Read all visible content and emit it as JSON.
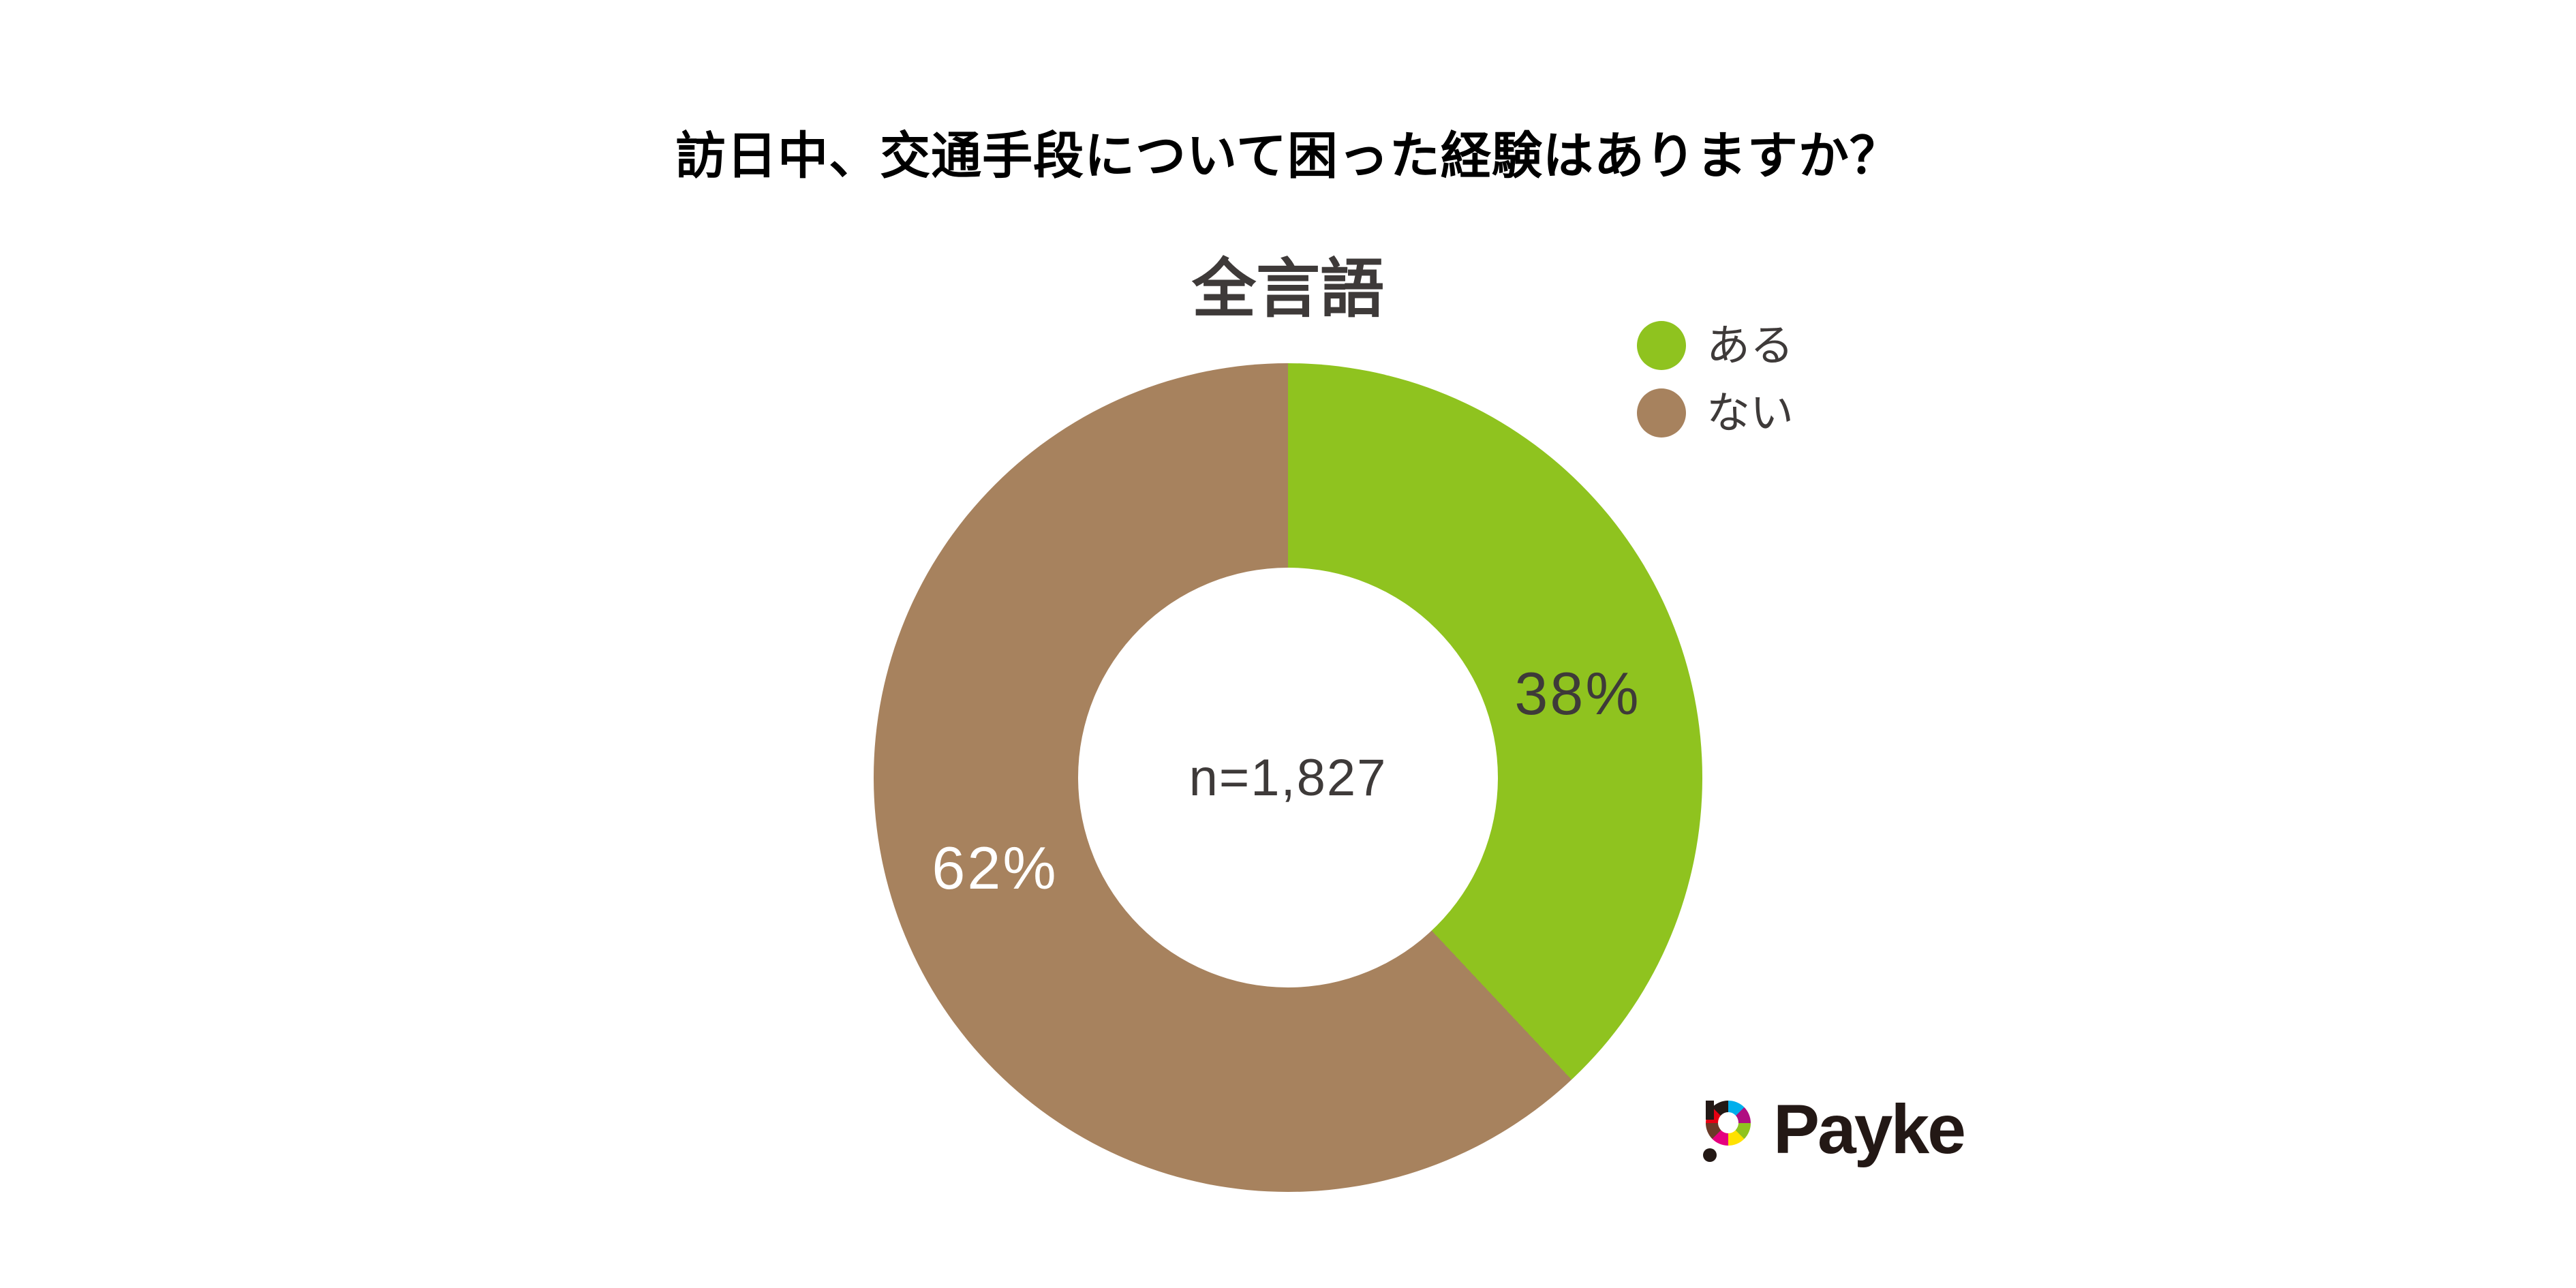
{
  "page": {
    "title": "訪日中、交通手段について困った経験はありますか？"
  },
  "chart": {
    "subtitle": "全言語",
    "sample_size_label": "n=1,827",
    "slices": [
      {
        "label": "ある",
        "percent_label": "38%",
        "color": "#8fc31f"
      },
      {
        "label": "ない",
        "percent_label": "62%",
        "color": "#a7825e"
      }
    ]
  },
  "legend": {
    "items": [
      {
        "label": "ある",
        "color": "#8fc31f"
      },
      {
        "label": "ない",
        "color": "#a7825e"
      }
    ]
  },
  "logo": {
    "text": "Payke"
  },
  "chart_data": {
    "type": "pie",
    "donut": true,
    "question": "訪日中、交通手段について困った経験はありますか？",
    "title": "全言語",
    "categories": [
      "ある",
      "ない"
    ],
    "values": [
      38,
      62
    ],
    "unit": "%",
    "sample_size": "n=1,827",
    "colors": [
      "#8fc31f",
      "#a7825e"
    ],
    "start_angle": "top",
    "direction": "clockwise",
    "legend_position": "top-right",
    "data_labels": [
      "38%",
      "62%"
    ]
  }
}
